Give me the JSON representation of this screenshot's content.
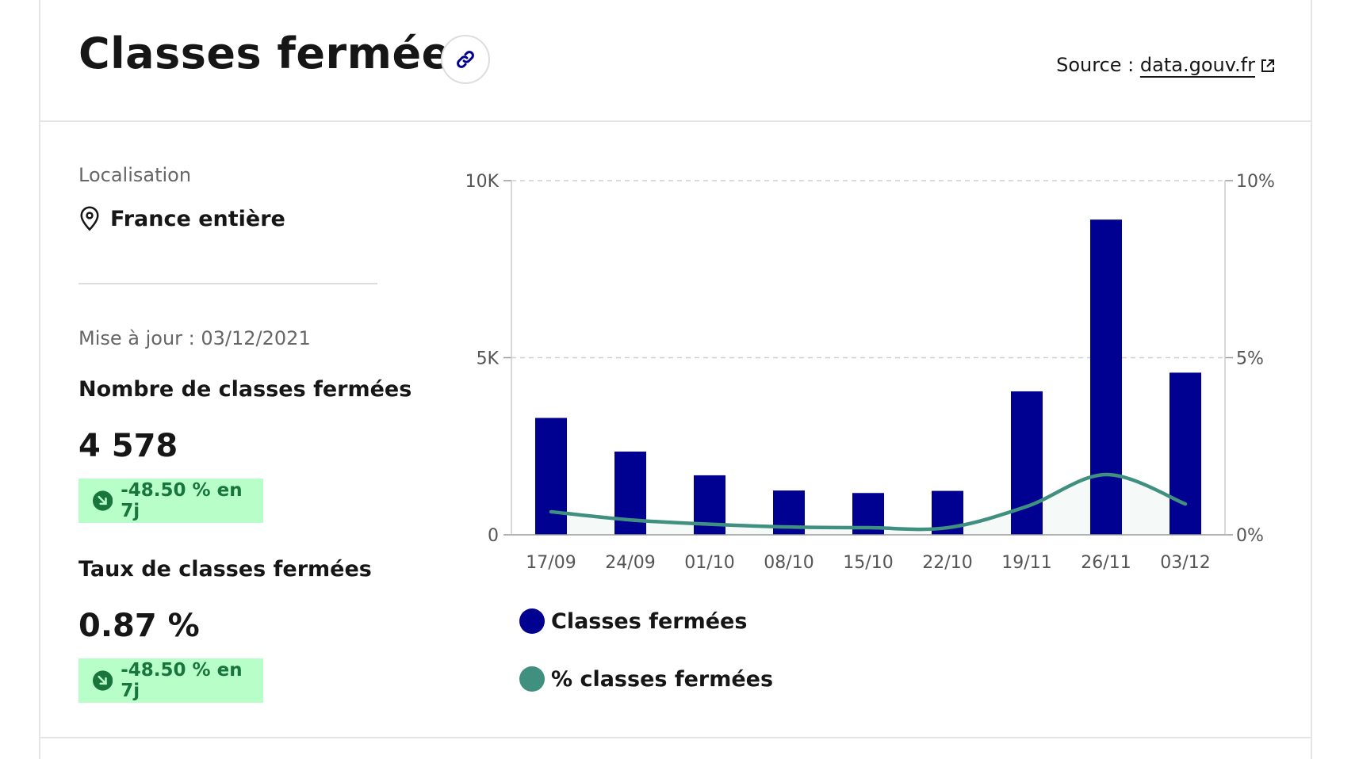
{
  "header": {
    "title": "Classes fermées",
    "source_prefix": "Source : ",
    "source_link": "data.gouv.fr"
  },
  "location": {
    "label": "Localisation",
    "value": "France entière"
  },
  "update_text": "Mise à jour : 03/12/2021",
  "metrics": [
    {
      "label": "Nombre de classes fermées",
      "value": "4 578",
      "trend": "-48.50 % en 7j"
    },
    {
      "label": "Taux de classes fermées",
      "value": "0.87 %",
      "trend": "-48.50 % en 7j"
    }
  ],
  "colors": {
    "bar": "#000091",
    "line": "#40907f",
    "trend_bg": "#b8fec9",
    "trend_text": "#18753c"
  },
  "chart_data": {
    "type": "bar",
    "categories": [
      "17/09",
      "24/09",
      "01/10",
      "08/10",
      "15/10",
      "22/10",
      "19/11",
      "26/11",
      "03/12"
    ],
    "series": [
      {
        "name": "Classes fermées",
        "type": "bar",
        "axis": "left",
        "values": [
          3300,
          2350,
          1680,
          1250,
          1180,
          1240,
          4050,
          8900,
          4578
        ]
      },
      {
        "name": "% classes fermées",
        "type": "line",
        "axis": "right",
        "values": [
          0.65,
          0.42,
          0.3,
          0.22,
          0.2,
          0.2,
          0.8,
          1.7,
          0.87
        ]
      }
    ],
    "y_left": {
      "min": 0,
      "max": 10000,
      "ticks": [
        "0",
        "5K",
        "10K"
      ]
    },
    "y_right": {
      "min": 0,
      "max": 10,
      "ticks": [
        "0%",
        "5%",
        "10%"
      ]
    },
    "grid": true,
    "legend": "bottom-left"
  }
}
